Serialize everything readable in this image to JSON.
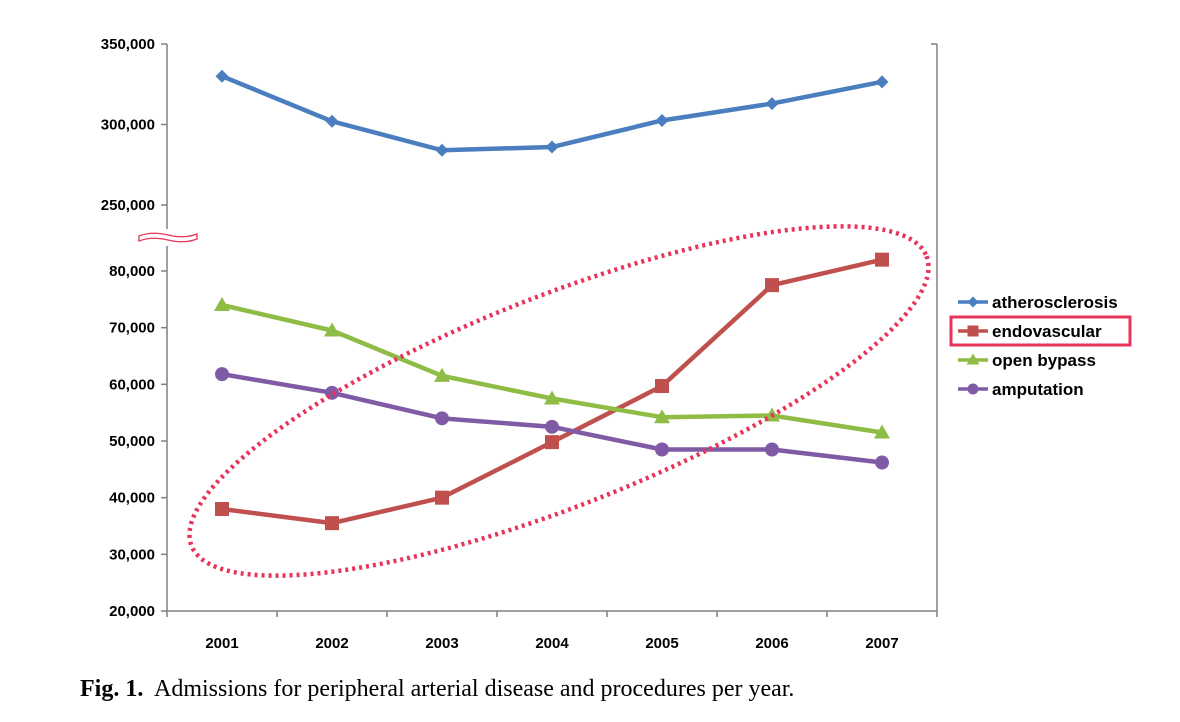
{
  "chart_data": {
    "type": "line",
    "categories": [
      "2001",
      "2002",
      "2003",
      "2004",
      "2005",
      "2006",
      "2007"
    ],
    "series": [
      {
        "name": "atherosclerosis",
        "color": "#4a7ebf",
        "marker": "diamond",
        "values": [
          330000,
          302000,
          284000,
          286000,
          302500,
          313000,
          326500
        ]
      },
      {
        "name": "endovascular",
        "color": "#c0504d",
        "marker": "square",
        "values": [
          38000,
          35500,
          40000,
          49800,
          59700,
          77500,
          82000
        ]
      },
      {
        "name": "open bypass",
        "color": "#8fbc45",
        "marker": "triangle",
        "values": [
          74000,
          69500,
          61500,
          57500,
          54200,
          54500,
          51500
        ]
      },
      {
        "name": "amputation",
        "color": "#7f5ba6",
        "marker": "circle",
        "values": [
          61800,
          58500,
          54000,
          52500,
          48500,
          48500,
          46200
        ]
      }
    ],
    "y_axis": {
      "broken": true,
      "upper_segment": {
        "range": [
          250000,
          350000
        ],
        "ticks": [
          "350,000",
          "300,000",
          "250,000"
        ]
      },
      "lower_segment": {
        "range": [
          20000,
          80000
        ],
        "ticks": [
          "80,000",
          "70,000",
          "60,000",
          "50,000",
          "40,000",
          "30,000",
          "20,000"
        ]
      }
    },
    "legend_position": "right",
    "highlight": {
      "legend_item": "endovascular",
      "ellipse_color": "#e8345a"
    },
    "grid": false
  },
  "caption": {
    "label": "Fig. 1.",
    "text": "Admissions for peripheral arterial disease and procedures per year."
  }
}
